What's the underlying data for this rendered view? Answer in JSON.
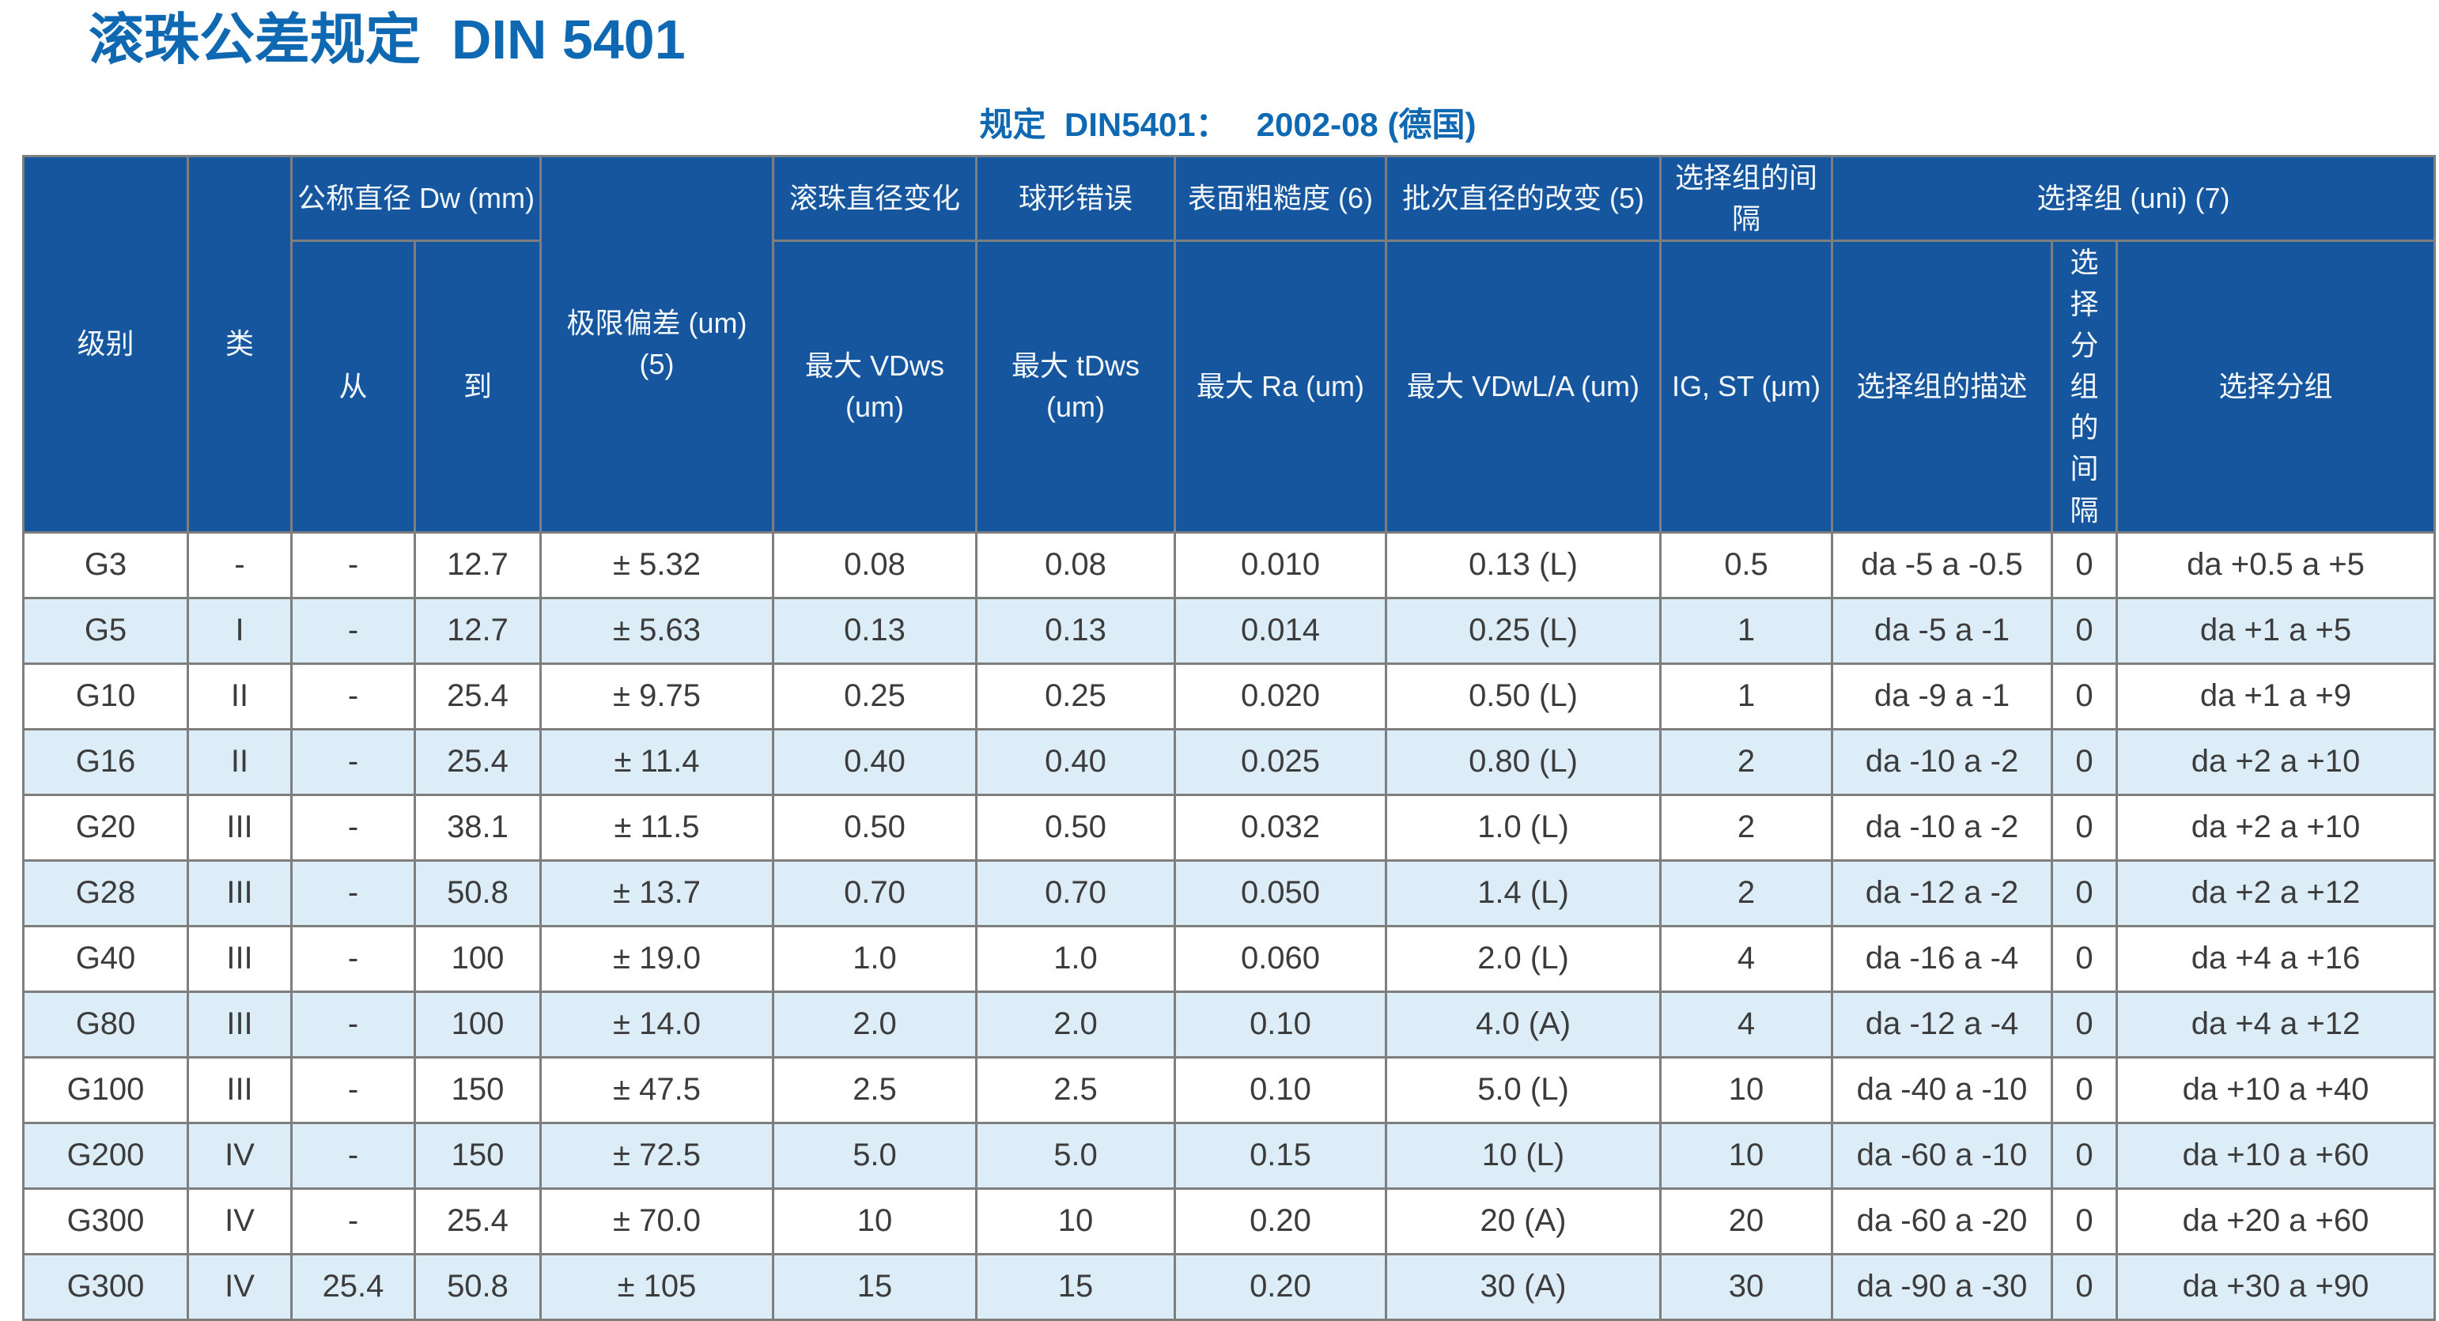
{
  "page": {
    "title": "滚珠公差规定  DIN 5401",
    "subtitle": "规定  DIN5401：   2002-08 (德国)"
  },
  "colors": {
    "title_blue": "#0f68b2",
    "header_blue": "#15569e",
    "header_text": "#f4f8fc",
    "alt_row_blue": "#dcedf8",
    "border_gray": "#7e7e7e",
    "body_text": "#3c3c3c"
  },
  "table": {
    "headers": {
      "grade": "级别",
      "class": "类",
      "nominal_diameter": "公称直径 Dw (mm)",
      "from": "从",
      "to": "到",
      "limit_deviation": "极限偏差 (um) (5)",
      "diameter_variation": "滚珠直径变化",
      "max_vdws": "最大 VDws (um)",
      "spherical_error": "球形错误",
      "max_tdws": "最大 tDws (um)",
      "surface_roughness": "表面粗糙度 (6)",
      "max_ra": "最大 Ra (um)",
      "lot_diameter_change": "批次直径的改变 (5)",
      "max_vdwl_a": "最大 VDwL/A (um)",
      "selection_group_interval": "选择组的间隔",
      "ig_st": "IG, ST (μm)",
      "selection_group": "选择组 (uni) (7)",
      "selection_group_description": "选择组的描述",
      "selection_subgroup_interval": "选择分组的间隔",
      "selection_subgroup": "选择分组"
    },
    "column_keys": [
      "grade",
      "class",
      "dia-from",
      "dia-to",
      "limit-deviation",
      "max-vdws",
      "max-tdws",
      "max-ra",
      "max-vdwl-a",
      "ig-st",
      "group-description",
      "subgroup-interval",
      "subgroup-range"
    ],
    "rows": [
      [
        "G3",
        "-",
        "-",
        "12.7",
        "± 5.32",
        "0.08",
        "0.08",
        "0.010",
        "0.13 (L)",
        "0.5",
        "da -5 a -0.5",
        "0",
        "da +0.5 a +5"
      ],
      [
        "G5",
        "I",
        "-",
        "12.7",
        "± 5.63",
        "0.13",
        "0.13",
        "0.014",
        "0.25 (L)",
        "1",
        "da -5 a -1",
        "0",
        "da +1 a +5"
      ],
      [
        "G10",
        "II",
        "-",
        "25.4",
        "± 9.75",
        "0.25",
        "0.25",
        "0.020",
        "0.50 (L)",
        "1",
        "da -9 a -1",
        "0",
        "da +1 a +9"
      ],
      [
        "G16",
        "II",
        "-",
        "25.4",
        "± 11.4",
        "0.40",
        "0.40",
        "0.025",
        "0.80 (L)",
        "2",
        "da -10 a -2",
        "0",
        "da +2 a +10"
      ],
      [
        "G20",
        "III",
        "-",
        "38.1",
        "± 11.5",
        "0.50",
        "0.50",
        "0.032",
        "1.0 (L)",
        "2",
        "da -10 a -2",
        "0",
        "da +2 a +10"
      ],
      [
        "G28",
        "III",
        "-",
        "50.8",
        "± 13.7",
        "0.70",
        "0.70",
        "0.050",
        "1.4 (L)",
        "2",
        "da -12 a -2",
        "0",
        "da +2 a +12"
      ],
      [
        "G40",
        "III",
        "-",
        "100",
        "± 19.0",
        "1.0",
        "1.0",
        "0.060",
        "2.0 (L)",
        "4",
        "da -16 a -4",
        "0",
        "da +4 a +16"
      ],
      [
        "G80",
        "III",
        "-",
        "100",
        "± 14.0",
        "2.0",
        "2.0",
        "0.10",
        "4.0 (A)",
        "4",
        "da -12 a -4",
        "0",
        "da +4 a +12"
      ],
      [
        "G100",
        "III",
        "-",
        "150",
        "± 47.5",
        "2.5",
        "2.5",
        "0.10",
        "5.0 (L)",
        "10",
        "da -40 a -10",
        "0",
        "da +10 a +40"
      ],
      [
        "G200",
        "IV",
        "-",
        "150",
        "± 72.5",
        "5.0",
        "5.0",
        "0.15",
        "10 (L)",
        "10",
        "da -60 a -10",
        "0",
        "da +10 a +60"
      ],
      [
        "G300",
        "IV",
        "-",
        "25.4",
        "± 70.0",
        "10",
        "10",
        "0.20",
        "20 (A)",
        "20",
        "da -60 a -20",
        "0",
        "da +20 a +60"
      ],
      [
        "G300",
        "IV",
        "25.4",
        "50.8",
        "± 105",
        "15",
        "15",
        "0.20",
        "30 (A)",
        "30",
        "da -90 a -30",
        "0",
        "da +30 a +90"
      ]
    ]
  }
}
